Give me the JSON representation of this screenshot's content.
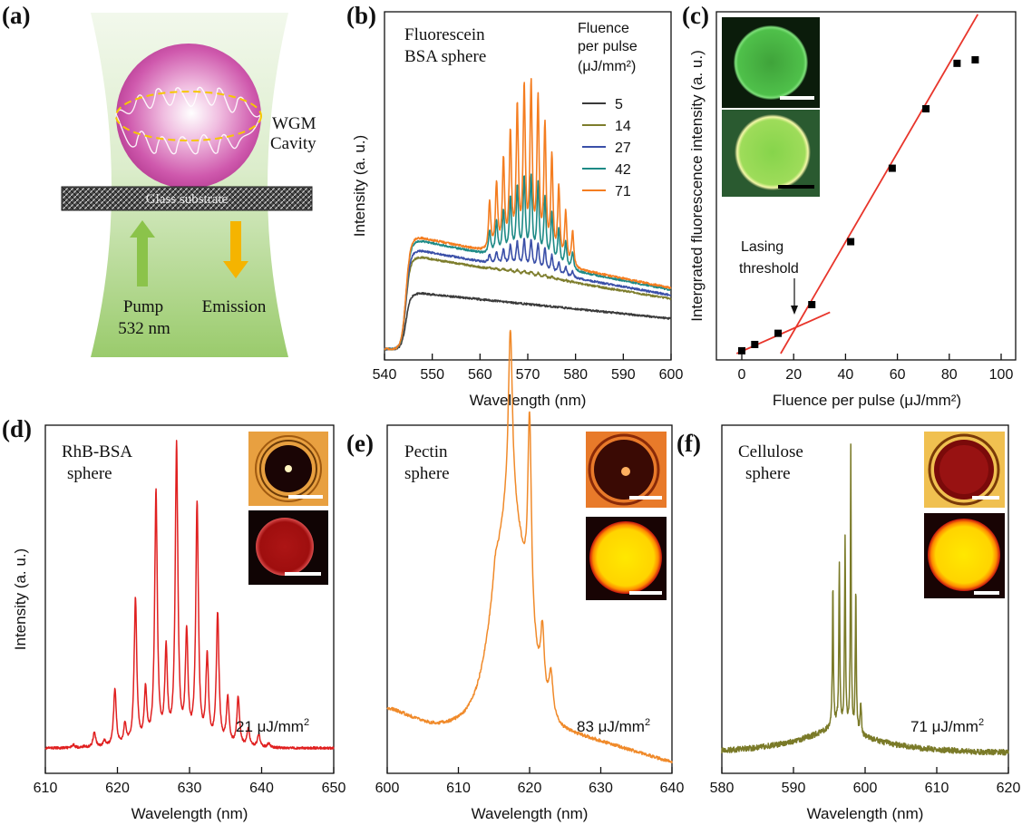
{
  "panel_labels": {
    "a": "(a)",
    "b": "(b)",
    "c": "(c)",
    "d": "(d)",
    "e": "(e)",
    "f": "(f)"
  },
  "schematic": {
    "cavity_label_1": "WGM",
    "cavity_label_2": "Cavity",
    "substrate_label": "Glass substrate",
    "pump_label_1": "Pump",
    "pump_label_2": "532 nm",
    "emission_label": "Emission",
    "colors": {
      "beam": "#a8cf85",
      "sphere": "#c0479a",
      "pump_arrow": "#8bc34a",
      "emission_arrow": "#f5b400"
    }
  },
  "chart_data": [
    {
      "id": "b",
      "type": "line",
      "annotation_1": "Fluorescein",
      "annotation_2": "BSA sphere",
      "legend_title_1": "Fluence",
      "legend_title_2": "per pulse",
      "legend_title_3": "(μJ/mm²)",
      "xlabel": "Wavelength (nm)",
      "ylabel": "Intensity (a. u.)",
      "xlim": [
        540,
        600
      ],
      "xticks": [
        "540",
        "550",
        "560",
        "570",
        "580",
        "590",
        "600"
      ],
      "series": [
        {
          "name": "5",
          "color": "#3a3a3a",
          "base": 0.17,
          "peak_amp": 0.0
        },
        {
          "name": "14",
          "color": "#7d7d2c",
          "base": 0.28,
          "peak_amp": 0.02
        },
        {
          "name": "27",
          "color": "#3a4fa8",
          "base": 0.3,
          "peak_amp": 0.14
        },
        {
          "name": "42",
          "color": "#1d8a86",
          "base": 0.33,
          "peak_amp": 0.4
        },
        {
          "name": "71",
          "color": "#f47d20",
          "base": 0.34,
          "peak_amp": 0.82
        }
      ]
    },
    {
      "id": "c",
      "type": "scatter",
      "xlabel": "Fluence per pulse (μJ/mm²)",
      "ylabel": "Intergrated fluorescence intensity (a. u.)",
      "xlim": [
        -5,
        100
      ],
      "xticks": [
        "0",
        "20",
        "40",
        "60",
        "80",
        "100"
      ],
      "annotation_1": "Lasing",
      "annotation_2": "threshold",
      "x": [
        0,
        5,
        14,
        27,
        42,
        58,
        71,
        83,
        90
      ],
      "y": [
        0.4,
        1.3,
        2.9,
        7.0,
        16.0,
        26.5,
        35.0,
        41.5,
        42.0
      ],
      "fit_lines": [
        {
          "x": [
            -2,
            34
          ],
          "y": [
            0.0,
            5.9
          ]
        },
        {
          "x": [
            15,
            91
          ],
          "y": [
            0.0,
            48.5
          ]
        }
      ],
      "ylim": [
        0,
        49
      ],
      "colors": {
        "marker": "#000000",
        "fit": "#e8352b"
      }
    },
    {
      "id": "d",
      "type": "line",
      "annotation_1": "RhB-BSA",
      "annotation_2": "sphere",
      "fluence_value": "21 μJ/mm",
      "fluence_exp": "2",
      "xlabel": "Wavelength (nm)",
      "ylabel": "Intensity (a. u.)",
      "xlim": [
        610,
        650
      ],
      "xticks": [
        "610",
        "620",
        "630",
        "640",
        "650"
      ],
      "color": "#e02020",
      "peak_spacing_nm": 2.85,
      "peak_center_nm": 628.2
    },
    {
      "id": "e",
      "type": "line",
      "annotation_1": "Pectin",
      "annotation_2": "sphere",
      "fluence_value": "83 μJ/mm",
      "fluence_exp": "2",
      "xlabel": "Wavelength (nm)",
      "xlim": [
        600,
        640
      ],
      "xticks": [
        "600",
        "610",
        "620",
        "630",
        "640"
      ],
      "color": "#f08a2a"
    },
    {
      "id": "f",
      "type": "line",
      "annotation_1": "Cellulose",
      "annotation_2": "sphere",
      "fluence_value": "71 μJ/mm",
      "fluence_exp": "2",
      "xlabel": "Wavelength (nm)",
      "xlim": [
        580,
        620
      ],
      "xticks": [
        "580",
        "590",
        "600",
        "610",
        "620"
      ],
      "color": "#7a7a28"
    }
  ]
}
